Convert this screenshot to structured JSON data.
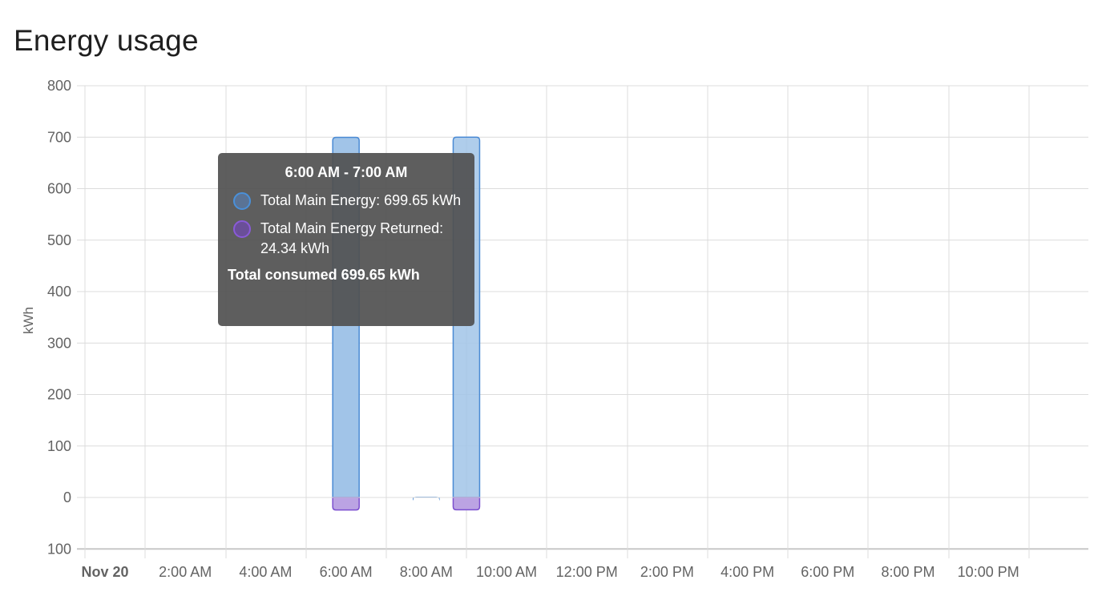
{
  "card": {
    "title": "Energy usage"
  },
  "tooltip": {
    "title": "6:00 AM - 7:00 AM",
    "rows": [
      {
        "label": "Total Main Energy: 699.65 kWh",
        "swatch_fill": "#5a7395",
        "swatch_border": "#4a90d9"
      },
      {
        "label": "Total Main Energy Returned: 24.34 kWh",
        "swatch_fill": "#6a4f98",
        "swatch_border": "#8a5ad8"
      }
    ],
    "total": "Total consumed 699.65 kWh"
  },
  "colors": {
    "consumed_fill": "#a1c4e8",
    "consumed_border": "#4a8ad4",
    "returned_fill": "#bba3e3",
    "returned_border": "#7b4fcf",
    "grid": "#dcdcdc",
    "axis_text": "#636363"
  },
  "chart_data": {
    "type": "bar",
    "title": "Energy usage",
    "xlabel": "",
    "ylabel": "kWh",
    "ylim": [
      -100,
      800
    ],
    "yticks": [
      800,
      700,
      600,
      500,
      400,
      300,
      200,
      100,
      0,
      -100
    ],
    "ytick_labels": [
      "800",
      "700",
      "600",
      "500",
      "400",
      "300",
      "200",
      "100",
      "0",
      "100"
    ],
    "xtick_labels": [
      "Nov 20",
      "2:00 AM",
      "4:00 AM",
      "6:00 AM",
      "8:00 AM",
      "10:00 AM",
      "12:00 PM",
      "2:00 PM",
      "4:00 PM",
      "6:00 PM",
      "8:00 PM",
      "10:00 PM"
    ],
    "grid": true,
    "stacked": true,
    "x_unit": "hour of day",
    "series": [
      {
        "name": "Total Main Energy",
        "hours": [
          6,
          8,
          9
        ],
        "values": [
          699.65,
          1,
          700
        ]
      },
      {
        "name": "Total Main Energy Returned",
        "hours": [
          6,
          9
        ],
        "values": [
          -24.34,
          -24
        ]
      }
    ],
    "tooltip_hour": 6
  }
}
